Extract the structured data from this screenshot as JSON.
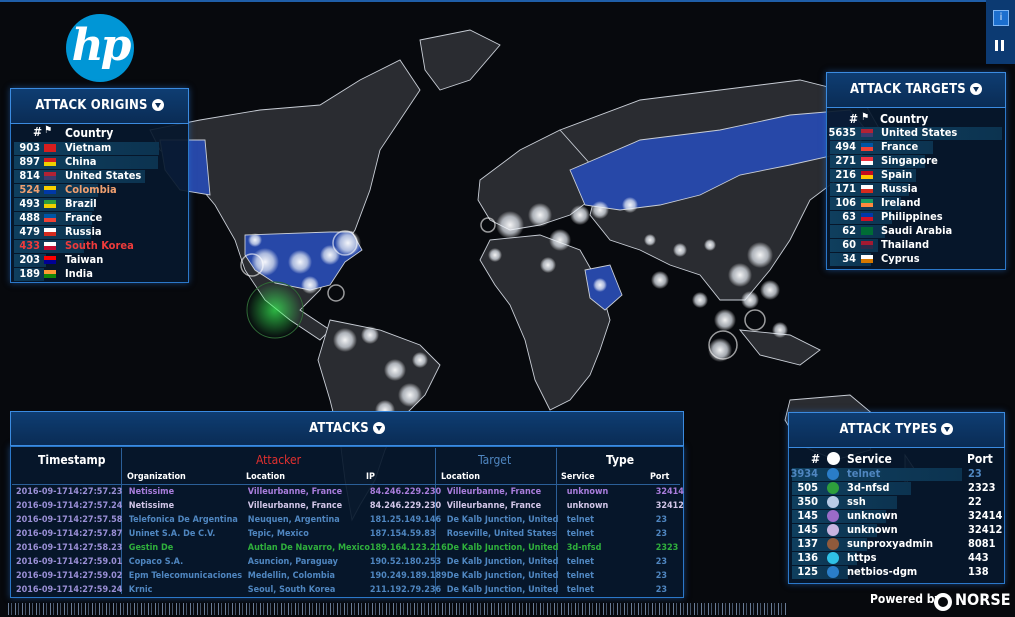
{
  "brand": {
    "logo": "hp",
    "powered_by": "Powered by",
    "norse": "NORSE"
  },
  "controls": {
    "info": "i"
  },
  "origins": {
    "title": "ATTACK ORIGINS",
    "col_num": "#",
    "col_country": "Country",
    "rows": [
      {
        "count": "903",
        "country": "Vietnam",
        "flag": "vn",
        "color": "#ffffff",
        "fraction": 1.0
      },
      {
        "count": "897",
        "country": "China",
        "flag": "cn",
        "color": "#ffffff",
        "fraction": 0.99
      },
      {
        "count": "814",
        "country": "United States",
        "flag": "us",
        "color": "#ffffff",
        "fraction": 0.9
      },
      {
        "count": "524",
        "country": "Colombia",
        "flag": "co",
        "color": "#f0a070",
        "fraction": 0.58
      },
      {
        "count": "493",
        "country": "Brazil",
        "flag": "br",
        "color": "#ffffff",
        "fraction": 0.55
      },
      {
        "count": "488",
        "country": "France",
        "flag": "fr",
        "color": "#ffffff",
        "fraction": 0.54
      },
      {
        "count": "479",
        "country": "Russia",
        "flag": "ru",
        "color": "#ffffff",
        "fraction": 0.53
      },
      {
        "count": "433",
        "country": "South Korea",
        "flag": "kr",
        "color": "#ee3b3b",
        "fraction": 0.48
      },
      {
        "count": "203",
        "country": "Taiwan",
        "flag": "tw",
        "color": "#ffffff",
        "fraction": 0.22
      },
      {
        "count": "189",
        "country": "India",
        "flag": "in",
        "color": "#ffffff",
        "fraction": 0.21
      }
    ]
  },
  "targets": {
    "title": "ATTACK TARGETS",
    "col_num": "#",
    "col_country": "Country",
    "rows": [
      {
        "count": "5635",
        "country": "United States",
        "flag": "us",
        "fraction": 1.0
      },
      {
        "count": "494",
        "country": "France",
        "flag": "fr",
        "fraction": 0.6
      },
      {
        "count": "271",
        "country": "Singapore",
        "flag": "sg",
        "fraction": 0.55
      },
      {
        "count": "216",
        "country": "Spain",
        "flag": "es",
        "fraction": 0.5
      },
      {
        "count": "171",
        "country": "Russia",
        "flag": "ru",
        "fraction": 0.46
      },
      {
        "count": "106",
        "country": "Ireland",
        "flag": "ie",
        "fraction": 0.41
      },
      {
        "count": "63",
        "country": "Philippines",
        "flag": "ph",
        "fraction": 0.36
      },
      {
        "count": "62",
        "country": "Saudi Arabia",
        "flag": "sa",
        "fraction": 0.32
      },
      {
        "count": "60",
        "country": "Thailand",
        "flag": "th",
        "fraction": 0.28
      },
      {
        "count": "34",
        "country": "Cyprus",
        "flag": "cy",
        "fraction": 0.24
      }
    ]
  },
  "types": {
    "title": "ATTACK TYPES",
    "col_num": "#",
    "col_service": "Service",
    "col_port": "Port",
    "rows": [
      {
        "count": "3934",
        "service": "telnet",
        "port": "23",
        "dot": "#2a7dc8",
        "color": "#4f86c0",
        "fraction": 1.0
      },
      {
        "count": "505",
        "service": "3d-nfsd",
        "port": "2323",
        "dot": "#2e9e3c",
        "color": "#ffffff",
        "fraction": 0.7
      },
      {
        "count": "350",
        "service": "ssh",
        "port": "22",
        "dot": "#b9cbe6",
        "color": "#ffffff",
        "fraction": 0.62
      },
      {
        "count": "145",
        "service": "unknown",
        "port": "32414",
        "dot": "#9b6bc8",
        "color": "#ffffff",
        "fraction": 0.55
      },
      {
        "count": "145",
        "service": "unknown",
        "port": "32412",
        "dot": "#c8b4e0",
        "color": "#ffffff",
        "fraction": 0.5
      },
      {
        "count": "137",
        "service": "sunproxyadmin",
        "port": "8081",
        "dot": "#8f5a3c",
        "color": "#ffffff",
        "fraction": 0.44
      },
      {
        "count": "136",
        "service": "https",
        "port": "443",
        "dot": "#2fc1e6",
        "color": "#ffffff",
        "fraction": 0.38
      },
      {
        "count": "125",
        "service": "netbios-dgm",
        "port": "138",
        "dot": "#2a7dc8",
        "color": "#ffffff",
        "fraction": 0.33
      }
    ]
  },
  "attacks": {
    "title": "ATTACKS",
    "timestamp": "Timestamp",
    "attacker": "Attacker",
    "target": "Target",
    "type": "Type",
    "sub_org": "Organization",
    "sub_loc": "Location",
    "sub_ip": "IP",
    "sub_tloc": "Location",
    "sub_service": "Service",
    "sub_port": "Port",
    "rows": [
      {
        "date": "2016-09-17",
        "time": "14:27:57.23",
        "org": "Netissime",
        "loc": "Villeurbanne, France",
        "ip": "84.246.229.230",
        "tloc": "Villeurbanne, France",
        "service": "unknown",
        "port": "32414",
        "color": "#a97ddc"
      },
      {
        "date": "2016-09-17",
        "time": "14:27:57.24",
        "org": "Netissime",
        "loc": "Villeurbanne, France",
        "ip": "84.246.229.230",
        "tloc": "Villeurbanne, France",
        "service": "unknown",
        "port": "32412",
        "color": "#d2c6e8"
      },
      {
        "date": "2016-09-17",
        "time": "14:27:57.58",
        "org": "Telefonica De Argentina",
        "loc": "Neuquen, Argentina",
        "ip": "181.25.149.146",
        "tloc": "De Kalb Junction, United",
        "service": "telnet",
        "port": "23",
        "color": "#4f86c0"
      },
      {
        "date": "2016-09-17",
        "time": "14:27:57.87",
        "org": "Uninet S.A. De C.V.",
        "loc": "Tepic, Mexico",
        "ip": "187.154.59.83",
        "tloc": "Roseville, United States",
        "service": "telnet",
        "port": "23",
        "color": "#4f86c0"
      },
      {
        "date": "2016-09-17",
        "time": "14:27:58.23",
        "org": "Gestin De",
        "loc": "Autlan De Navarro, Mexico",
        "ip": "189.164.123.216",
        "tloc": "De Kalb Junction, United",
        "service": "3d-nfsd",
        "port": "2323",
        "color": "#2fb03c"
      },
      {
        "date": "2016-09-17",
        "time": "14:27:59.01",
        "org": "Copaco S.A.",
        "loc": "Asuncion, Paraguay",
        "ip": "190.52.180.253",
        "tloc": "De Kalb Junction, United",
        "service": "telnet",
        "port": "23",
        "color": "#4f86c0"
      },
      {
        "date": "2016-09-17",
        "time": "14:27:59.02",
        "org": "Epm Telecomunicaciones",
        "loc": "Medellin, Colombia",
        "ip": "190.249.189.189",
        "tloc": "De Kalb Junction, United",
        "service": "telnet",
        "port": "23",
        "color": "#4f86c0"
      },
      {
        "date": "2016-09-17",
        "time": "14:27:59.24",
        "org": "Krnic",
        "loc": "Seoul, South Korea",
        "ip": "211.192.79.236",
        "tloc": "De Kalb Junction, United",
        "service": "telnet",
        "port": "23",
        "color": "#4f86c0"
      }
    ]
  }
}
